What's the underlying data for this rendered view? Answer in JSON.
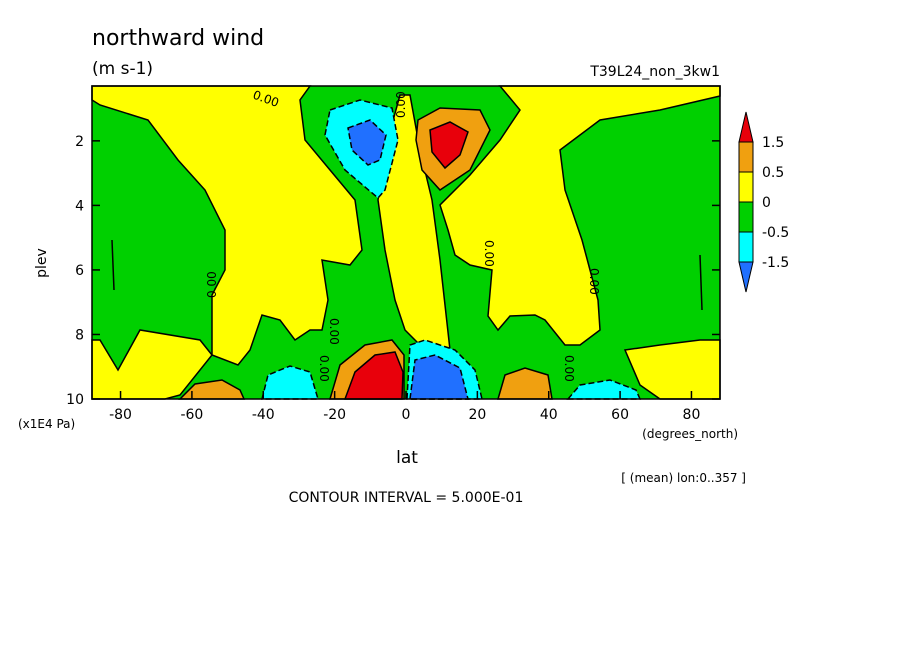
{
  "chart_data": {
    "type": "heatmap",
    "subtype": "filled-contour",
    "title": "northward wind",
    "units": "(m s-1)",
    "run_label": "T39L24_non_3kw1",
    "xlabel": "lat",
    "x_units": "(degrees_north)",
    "ylabel": "plev",
    "y_units": "(x1E4 Pa)",
    "x_ticks": [
      -80,
      -60,
      -40,
      -20,
      0,
      20,
      40,
      60,
      80
    ],
    "y_ticks": [
      2,
      4,
      6,
      8,
      10
    ],
    "xlim": [
      -88,
      88
    ],
    "ylim": [
      10,
      0.3
    ],
    "y_reversed": true,
    "mean_note": "[ (mean) lon:0..357 ]",
    "contour_interval_text": "CONTOUR INTERVAL = 5.000E-01",
    "contour_label": "0.00",
    "colorbar": {
      "labels": [
        "1.5",
        "0.5",
        "0",
        "-0.5",
        "-1.5"
      ],
      "colors": [
        "#e8000b",
        "#f0a010",
        "#ffff00",
        "#00d000",
        "#00ffff",
        "#2070ff"
      ]
    },
    "colors": {
      "red": "#e8000b",
      "orange": "#f0a010",
      "yellow": "#ffff00",
      "green": "#00d000",
      "cyan": "#00ffff",
      "blue": "#2070ff"
    },
    "features": [
      {
        "lat": -11,
        "plev": 1.8,
        "value": -1.0
      },
      {
        "lat": 11,
        "plev": 1.8,
        "value": 1.0
      },
      {
        "lat": -7,
        "plev": 9.3,
        "value": 2.0
      },
      {
        "lat": 7,
        "plev": 9.3,
        "value": -2.0
      },
      {
        "lat": -34,
        "plev": 9.5,
        "value": -0.5
      },
      {
        "lat": 34,
        "plev": 9.5,
        "value": 0.5
      },
      {
        "lat": -54,
        "plev": 9.8,
        "value": 0.5
      },
      {
        "lat": 54,
        "plev": 9.8,
        "value": -0.5
      }
    ]
  }
}
